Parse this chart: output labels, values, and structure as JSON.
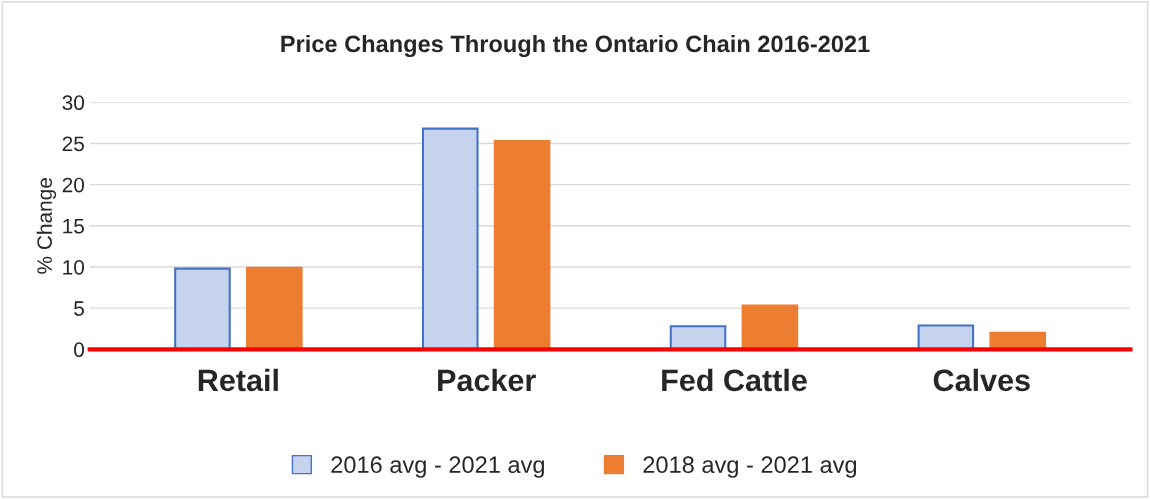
{
  "chart_data": {
    "type": "bar",
    "title": "Price Changes Through the Ontario Chain 2016-2021",
    "ylabel": "% Change",
    "categories": [
      "Retail",
      "Packer",
      "Fed Cattle",
      "Calves"
    ],
    "series": [
      {
        "name": "2016 avg - 2021 avg",
        "color": "#c5d3ef",
        "values": [
          9.8,
          26.8,
          2.8,
          2.9
        ]
      },
      {
        "name": "2018 avg - 2021 avg",
        "color": "#ed7d31",
        "values": [
          9.9,
          25.3,
          5.3,
          2.0
        ]
      }
    ],
    "ylim": [
      0,
      30
    ],
    "yticks": [
      0,
      5,
      10,
      15,
      20,
      25,
      30
    ],
    "grid": "y",
    "legend": "bottom"
  }
}
